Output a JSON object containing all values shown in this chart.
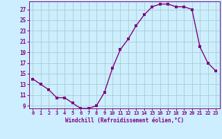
{
  "x": [
    0,
    1,
    2,
    3,
    4,
    5,
    6,
    7,
    8,
    9,
    10,
    11,
    12,
    13,
    14,
    15,
    16,
    17,
    18,
    19,
    20,
    21,
    22,
    23
  ],
  "y": [
    14,
    13,
    12,
    10.5,
    10.5,
    9.5,
    8.5,
    8.5,
    9,
    11.5,
    16,
    19.5,
    21.5,
    24,
    26,
    27.5,
    28,
    28,
    27.5,
    27.5,
    27,
    20,
    17,
    15.5
  ],
  "line_color": "#800080",
  "marker_color": "#800080",
  "bg_color": "#cceeff",
  "grid_color": "#aacccc",
  "xlabel": "Windchill (Refroidissement éolien,°C)",
  "ylabel": "",
  "ylim": [
    8.5,
    28.5
  ],
  "xlim": [
    -0.5,
    23.5
  ],
  "yticks": [
    9,
    11,
    13,
    15,
    17,
    19,
    21,
    23,
    25,
    27
  ],
  "xticks": [
    0,
    1,
    2,
    3,
    4,
    5,
    6,
    7,
    8,
    9,
    10,
    11,
    12,
    13,
    14,
    15,
    16,
    17,
    18,
    19,
    20,
    21,
    22,
    23
  ],
  "tick_color": "#800080",
  "xlabel_color": "#800080",
  "axis_color": "#800080",
  "marker_size": 2.5,
  "line_width": 1.0
}
